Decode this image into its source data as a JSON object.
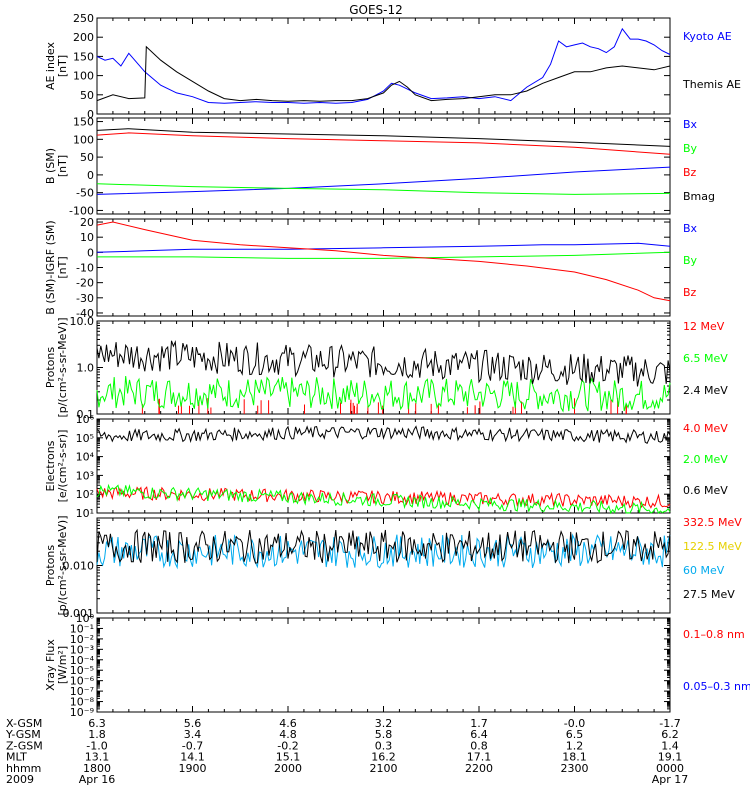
{
  "title": "GOES-12",
  "chart_data": [
    {
      "type": "line",
      "ylabel": [
        "AE index",
        "[nT]"
      ],
      "yscale": "linear",
      "ylim": [
        0,
        250
      ],
      "yticks": [
        0,
        50,
        100,
        150,
        200,
        250
      ],
      "series": [
        {
          "name": "Kyoto AE",
          "color": "#0000ff",
          "x": [
            1800,
            1805,
            1810,
            1815,
            1820,
            1830,
            1840,
            1850,
            1900,
            1910,
            1920,
            1930,
            1940,
            1950,
            2000,
            2010,
            2020,
            2030,
            2040,
            2050,
            2100,
            2105,
            2110,
            2120,
            2130,
            2140,
            2150,
            2200,
            2210,
            2220,
            2230,
            2240,
            2245,
            2250,
            2255,
            2300,
            2305,
            2310,
            2315,
            2320,
            2325,
            2330,
            2335,
            2340,
            2345,
            2350,
            2355,
            2400
          ],
          "y": [
            150,
            140,
            145,
            125,
            158,
            110,
            75,
            55,
            45,
            30,
            28,
            30,
            32,
            30,
            30,
            28,
            30,
            28,
            30,
            38,
            60,
            80,
            75,
            55,
            40,
            42,
            45,
            40,
            45,
            35,
            70,
            95,
            130,
            190,
            175,
            180,
            185,
            175,
            170,
            160,
            175,
            222,
            195,
            195,
            190,
            180,
            165,
            155
          ]
        },
        {
          "name": "Themis AE",
          "color": "#000000",
          "x": [
            1800,
            1810,
            1820,
            1830,
            1831,
            1840,
            1850,
            1900,
            1910,
            1920,
            1930,
            1940,
            1950,
            2000,
            2010,
            2020,
            2030,
            2040,
            2050,
            2100,
            2105,
            2110,
            2115,
            2120,
            2130,
            2140,
            2150,
            2200,
            2210,
            2220,
            2230,
            2240,
            2250,
            2300,
            2310,
            2320,
            2330,
            2340,
            2350,
            2400
          ],
          "y": [
            35,
            50,
            40,
            42,
            175,
            140,
            110,
            85,
            60,
            40,
            35,
            38,
            35,
            33,
            35,
            33,
            35,
            35,
            40,
            55,
            75,
            85,
            70,
            50,
            35,
            38,
            40,
            45,
            50,
            50,
            60,
            80,
            95,
            110,
            110,
            120,
            125,
            120,
            115,
            125
          ]
        }
      ]
    },
    {
      "type": "line",
      "ylabel": [
        "B (SM)",
        "[nT]"
      ],
      "yscale": "linear",
      "ylim": [
        -110,
        160
      ],
      "yticks": [
        -100,
        -50,
        0,
        50,
        100,
        150
      ],
      "series": [
        {
          "name": "Bx",
          "color": "#0000ff",
          "x": [
            1800,
            1900,
            2000,
            2100,
            2200,
            2300,
            2400
          ],
          "y": [
            -55,
            -47,
            -38,
            -25,
            -10,
            8,
            22
          ]
        },
        {
          "name": "By",
          "color": "#00ff00",
          "x": [
            1800,
            1900,
            2000,
            2100,
            2200,
            2300,
            2400
          ],
          "y": [
            -25,
            -33,
            -38,
            -42,
            -50,
            -55,
            -52
          ]
        },
        {
          "name": "Bz",
          "color": "#ff0000",
          "x": [
            1800,
            1820,
            1900,
            2000,
            2100,
            2200,
            2300,
            2400
          ],
          "y": [
            112,
            118,
            110,
            102,
            96,
            90,
            78,
            58
          ]
        },
        {
          "name": "Bmag",
          "color": "#000000",
          "x": [
            1800,
            1820,
            1900,
            2000,
            2100,
            2200,
            2300,
            2400
          ],
          "y": [
            125,
            130,
            120,
            115,
            110,
            102,
            92,
            80
          ]
        }
      ]
    },
    {
      "type": "line",
      "ylabel": [
        "B (SM)-IGRF (SM)",
        "[nT]"
      ],
      "yscale": "linear",
      "ylim": [
        -42,
        22
      ],
      "yticks": [
        -40,
        -30,
        -20,
        -10,
        0,
        10,
        20
      ],
      "series": [
        {
          "name": "Bx",
          "color": "#0000ff",
          "x": [
            1800,
            1830,
            1900,
            2000,
            2100,
            2200,
            2240,
            2300,
            2340,
            2400
          ],
          "y": [
            0,
            1,
            2,
            2,
            3,
            4,
            5,
            5,
            6,
            4
          ]
        },
        {
          "name": "By",
          "color": "#00ff00",
          "x": [
            1800,
            1830,
            1900,
            2000,
            2100,
            2200,
            2300,
            2400
          ],
          "y": [
            -3,
            -3,
            -3,
            -4,
            -4,
            -3,
            -2,
            0
          ]
        },
        {
          "name": "Bz",
          "color": "#ff0000",
          "x": [
            1800,
            1810,
            1830,
            1900,
            1930,
            2000,
            2030,
            2100,
            2130,
            2200,
            2230,
            2300,
            2320,
            2340,
            2350,
            2400
          ],
          "y": [
            18,
            20,
            15,
            8,
            5,
            3,
            1,
            -2,
            -4,
            -6,
            -9,
            -13,
            -18,
            -25,
            -30,
            -32
          ]
        }
      ]
    },
    {
      "type": "line",
      "ylabel": [
        "Protons",
        "[p/(cm²-s-sr-MeV)]"
      ],
      "yscale": "log",
      "ylim": [
        0.1,
        10.0
      ],
      "yticks": [
        0.1,
        1.0,
        10.0
      ],
      "yticklabels": [
        "0.1",
        "1.0",
        "10.0"
      ],
      "series": [
        {
          "name": "12 MeV",
          "color": "#ff0000",
          "style": "sparse-spikes",
          "x": [
            1800,
            2400
          ],
          "y": [
            0.1,
            0.15
          ]
        },
        {
          "name": "6.5 MeV",
          "color": "#00ff00",
          "style": "noise",
          "x": [
            1800,
            2400
          ],
          "y": [
            0.3,
            0.25
          ]
        },
        {
          "name": "2.4 MeV",
          "color": "#000000",
          "style": "noise",
          "x": [
            1800,
            2400
          ],
          "y": [
            2.0,
            0.8
          ]
        }
      ]
    },
    {
      "type": "line",
      "ylabel": [
        "Electrons",
        "[e/(cm²-s-sr)]"
      ],
      "yscale": "log",
      "ylim": [
        10,
        1000000
      ],
      "yticks": [
        10,
        100,
        1000,
        10000,
        100000,
        1000000
      ],
      "yticklabels": [
        "10¹",
        "10²",
        "10³",
        "10⁴",
        "10⁵",
        "10⁶"
      ],
      "series": [
        {
          "name": "4.0 MeV",
          "color": "#ff0000",
          "style": "noise",
          "x": [
            1800,
            2400
          ],
          "y": [
            120,
            40
          ]
        },
        {
          "name": "2.0 MeV",
          "color": "#00ff00",
          "style": "noise",
          "x": [
            1800,
            2400
          ],
          "y": [
            150,
            15
          ]
        },
        {
          "name": "0.6 MeV",
          "color": "#000000",
          "style": "noise",
          "x": [
            1800,
            1900,
            2000,
            2100,
            2200,
            2300,
            2400
          ],
          "y": [
            120000,
            140000,
            180000,
            200000,
            160000,
            130000,
            110000
          ]
        }
      ]
    },
    {
      "type": "line",
      "ylabel": [
        "Protons",
        "[p/(cm²-s-sr-MeV)]"
      ],
      "yscale": "log",
      "ylim": [
        0.001,
        0.1
      ],
      "yticks": [
        0.001,
        0.01
      ],
      "yticklabels": [
        "0.001",
        "0.010"
      ],
      "series": [
        {
          "name": "332.5 MeV",
          "color": "#ff0000",
          "style": "none",
          "x": [],
          "y": []
        },
        {
          "name": "122.5 MeV",
          "color": "#ffff00",
          "style": "none",
          "x": [],
          "y": []
        },
        {
          "name": "60 MeV",
          "color": "#00aaee",
          "style": "noise",
          "x": [
            1800,
            2400
          ],
          "y": [
            0.02,
            0.02
          ]
        },
        {
          "name": "27.5 MeV",
          "color": "#000000",
          "style": "noise",
          "x": [
            1800,
            2400
          ],
          "y": [
            0.025,
            0.025
          ]
        }
      ]
    },
    {
      "type": "line",
      "ylabel": [
        "Xray  Flux",
        "[W/m²]"
      ],
      "yscale": "log",
      "ylim": [
        1e-09,
        1
      ],
      "yticks": [
        1e-09,
        1e-08,
        1e-07,
        1e-06,
        1e-05,
        0.0001,
        0.001,
        0.01,
        0.1,
        1
      ],
      "yticklabels": [
        "10⁻⁹",
        "10⁻⁸",
        "10⁻⁷",
        "10⁻⁶",
        "10⁻⁵",
        "10⁻⁴",
        "10⁻³",
        "10⁻²",
        "10⁻¹",
        "10⁰"
      ],
      "series": [
        {
          "name": "0.1–0.8 nm",
          "color": "#ff0000",
          "style": "none",
          "x": [],
          "y": []
        },
        {
          "name": "0.05–0.3 nm",
          "color": "#0000ff",
          "style": "none",
          "x": [],
          "y": []
        }
      ]
    }
  ],
  "xaxis": {
    "range": [
      1800,
      2400
    ],
    "major_ticks": [
      1800,
      1900,
      2000,
      2100,
      2200,
      2300,
      2400
    ],
    "rows": [
      {
        "label": "X-GSM",
        "values": [
          "6.3",
          "5.6",
          "4.6",
          "3.2",
          "1.7",
          "-0.0",
          "-1.7"
        ]
      },
      {
        "label": "Y-GSM",
        "values": [
          "1.8",
          "3.4",
          "4.8",
          "5.8",
          "6.4",
          "6.5",
          "6.2"
        ]
      },
      {
        "label": "Z-GSM",
        "values": [
          "-1.0",
          "-0.7",
          "-0.2",
          "0.3",
          "0.8",
          "1.2",
          "1.4"
        ]
      },
      {
        "label": "MLT",
        "values": [
          "13.1",
          "14.1",
          "15.1",
          "16.2",
          "17.1",
          "18.1",
          "19.1"
        ]
      },
      {
        "label": "hhmm",
        "values": [
          "1800",
          "1900",
          "2000",
          "2100",
          "2200",
          "2300",
          "0000"
        ]
      },
      {
        "label": "2009",
        "values": [
          "Apr 16",
          "",
          "",
          "",
          "",
          "",
          "Apr 17"
        ]
      }
    ]
  }
}
